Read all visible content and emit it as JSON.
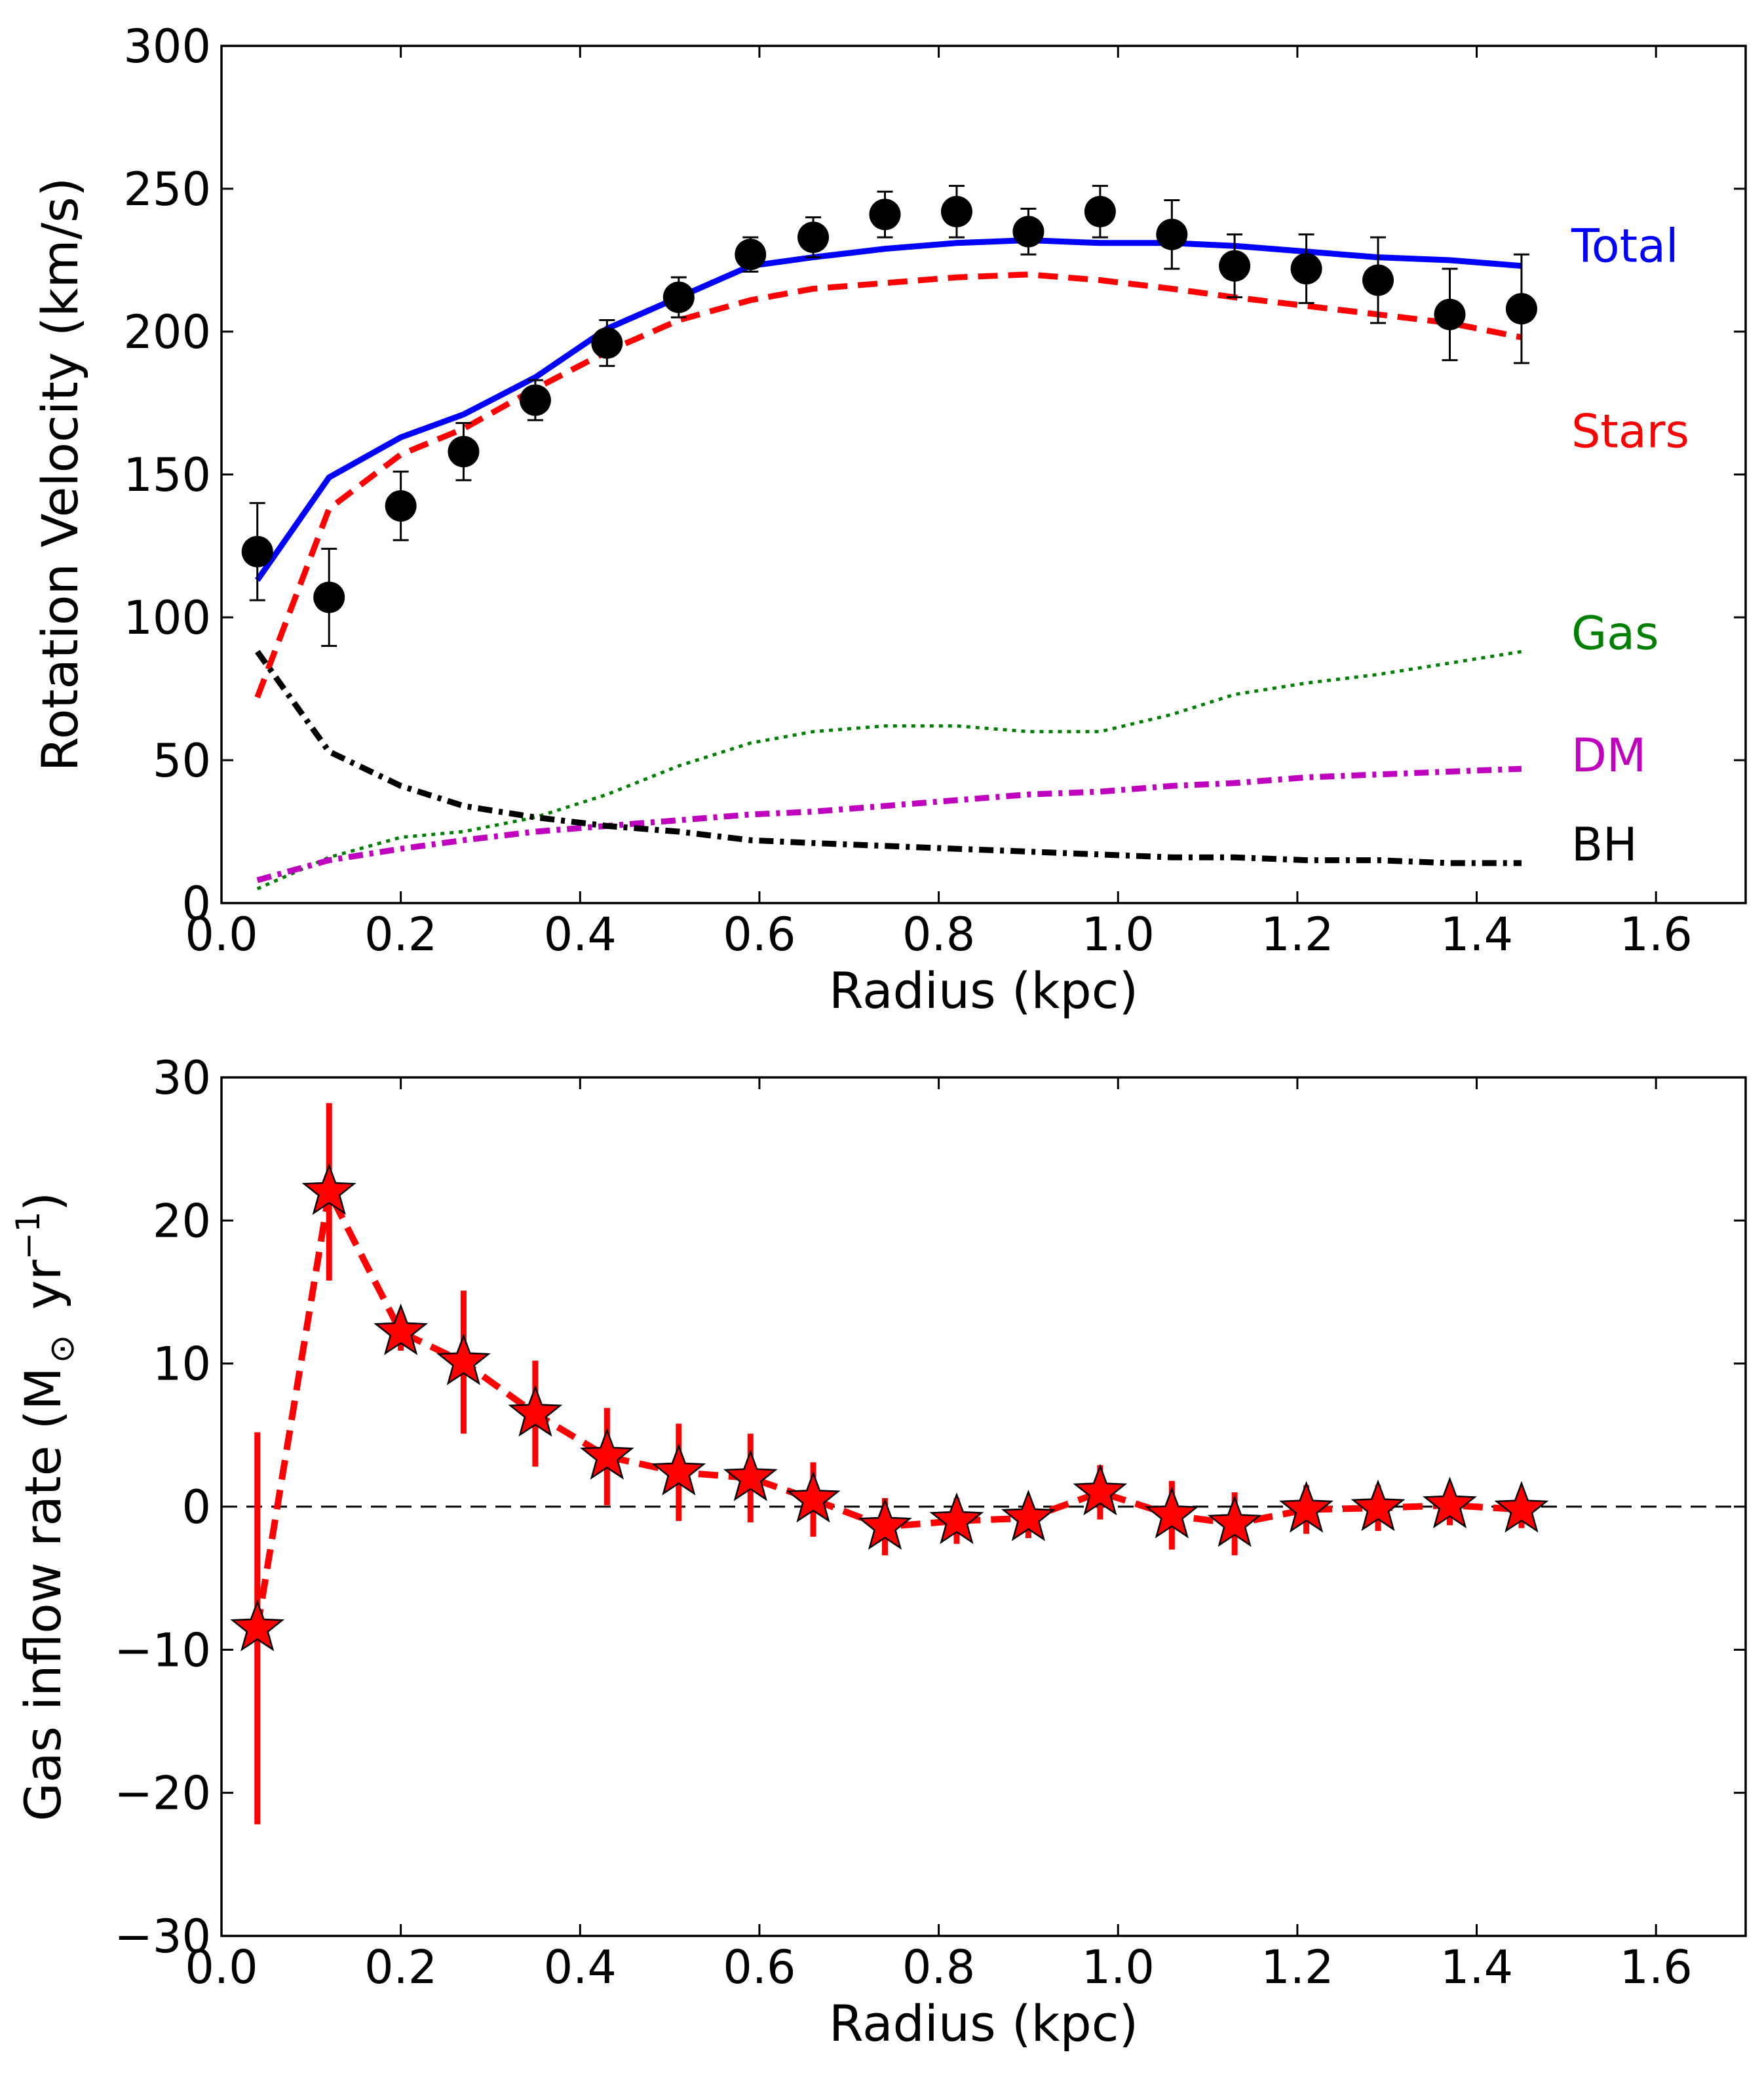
{
  "chart_data": [
    {
      "type": "line",
      "xlabel": "Radius (kpc)",
      "ylabel": "Rotation Velocity (km/s)",
      "xlim": [
        0.0,
        1.7
      ],
      "ylim": [
        0,
        300
      ],
      "xticks": [
        "0.0",
        "0.2",
        "0.4",
        "0.6",
        "0.8",
        "1.0",
        "1.2",
        "1.4",
        "1.6"
      ],
      "yticks": [
        "0",
        "50",
        "100",
        "150",
        "200",
        "250",
        "300"
      ],
      "grid": false,
      "legend": "inline labels at right end of curves",
      "observed": {
        "x": [
          0.04,
          0.12,
          0.2,
          0.27,
          0.35,
          0.43,
          0.51,
          0.59,
          0.66,
          0.74,
          0.82,
          0.9,
          0.98,
          1.06,
          1.13,
          1.21,
          1.29,
          1.37,
          1.45
        ],
        "y": [
          123,
          107,
          139,
          158,
          176,
          196,
          212,
          227,
          233,
          241,
          242,
          235,
          242,
          234,
          223,
          222,
          218,
          206,
          208
        ],
        "err": [
          17,
          17,
          12,
          10,
          7,
          8,
          7,
          6,
          7,
          8,
          9,
          8,
          9,
          12,
          11,
          12,
          15,
          16,
          19
        ],
        "color": "#000000"
      },
      "series": [
        {
          "name": "Total",
          "color": "#0000ff",
          "style": "solid",
          "x": [
            0.04,
            0.12,
            0.2,
            0.27,
            0.35,
            0.43,
            0.51,
            0.59,
            0.66,
            0.74,
            0.82,
            0.9,
            0.98,
            1.06,
            1.13,
            1.21,
            1.29,
            1.37,
            1.45
          ],
          "y": [
            113,
            149,
            163,
            171,
            184,
            201,
            212,
            223,
            226,
            229,
            231,
            232,
            231,
            231,
            230,
            228,
            226,
            225,
            223
          ]
        },
        {
          "name": "Stars",
          "color": "#ff0000",
          "style": "dashed",
          "x": [
            0.04,
            0.12,
            0.2,
            0.27,
            0.35,
            0.43,
            0.51,
            0.59,
            0.66,
            0.74,
            0.82,
            0.9,
            0.98,
            1.06,
            1.13,
            1.21,
            1.29,
            1.37,
            1.45
          ],
          "y": [
            72,
            138,
            157,
            166,
            180,
            193,
            204,
            211,
            215,
            217,
            219,
            220,
            218,
            215,
            212,
            209,
            206,
            203,
            198
          ]
        },
        {
          "name": "Gas",
          "color": "#008000",
          "style": "dotted",
          "x": [
            0.04,
            0.12,
            0.2,
            0.27,
            0.35,
            0.43,
            0.51,
            0.59,
            0.66,
            0.74,
            0.82,
            0.9,
            0.98,
            1.06,
            1.13,
            1.21,
            1.29,
            1.37,
            1.45
          ],
          "y": [
            5,
            16,
            23,
            25,
            30,
            38,
            48,
            56,
            60,
            62,
            62,
            60,
            60,
            66,
            73,
            77,
            80,
            84,
            88
          ]
        },
        {
          "name": "DM",
          "color": "#bf00bf",
          "style": "dashdot",
          "x": [
            0.04,
            0.12,
            0.2,
            0.27,
            0.35,
            0.43,
            0.51,
            0.59,
            0.66,
            0.74,
            0.82,
            0.9,
            0.98,
            1.06,
            1.13,
            1.21,
            1.29,
            1.37,
            1.45
          ],
          "y": [
            8,
            15,
            19,
            22,
            25,
            27,
            29,
            31,
            32,
            34,
            36,
            38,
            39,
            41,
            42,
            44,
            45,
            46,
            47
          ]
        },
        {
          "name": "BH",
          "color": "#000000",
          "style": "dashdot",
          "x": [
            0.04,
            0.12,
            0.2,
            0.27,
            0.35,
            0.43,
            0.51,
            0.59,
            0.66,
            0.74,
            0.82,
            0.9,
            0.98,
            1.06,
            1.13,
            1.21,
            1.29,
            1.37,
            1.45
          ],
          "y": [
            88,
            53,
            41,
            34,
            30,
            27,
            25,
            22,
            21,
            20,
            19,
            18,
            17,
            16,
            16,
            15,
            15,
            14,
            14
          ]
        }
      ]
    },
    {
      "type": "scatter",
      "xlabel": "Radius (kpc)",
      "ylabel": "Gas inflow rate (M",
      "ylabel_sub": "⊙",
      "ylabel_unit": " yr",
      "ylabel_sup": "−1",
      "ylabel_close": ")",
      "xlim": [
        0.0,
        1.7
      ],
      "ylim": [
        -30,
        30
      ],
      "xticks": [
        "0.0",
        "0.2",
        "0.4",
        "0.6",
        "0.8",
        "1.0",
        "1.2",
        "1.4",
        "1.6"
      ],
      "yticks": [
        "−30",
        "−20",
        "−10",
        "0",
        "10",
        "20",
        "30"
      ],
      "grid": false,
      "zero_line": true,
      "series": [
        {
          "color": "#ff0000",
          "style": "dashed",
          "marker": "star",
          "x": [
            0.04,
            0.12,
            0.2,
            0.27,
            0.35,
            0.43,
            0.51,
            0.59,
            0.66,
            0.74,
            0.82,
            0.9,
            0.98,
            1.06,
            1.13,
            1.21,
            1.29,
            1.37,
            1.45
          ],
          "y": [
            -8.5,
            22,
            12.2,
            10.1,
            6.5,
            3.5,
            2.4,
            2.0,
            0.5,
            -1.4,
            -1.0,
            -0.8,
            1.0,
            -0.6,
            -1.2,
            -0.2,
            -0.1,
            0.1,
            -0.2
          ],
          "err": [
            13.7,
            6.2,
            1.3,
            5.0,
            3.7,
            3.4,
            3.4,
            3.1,
            2.6,
            2.0,
            1.6,
            1.4,
            1.9,
            2.4,
            2.2,
            1.7,
            1.6,
            1.4,
            1.3
          ]
        }
      ]
    }
  ]
}
